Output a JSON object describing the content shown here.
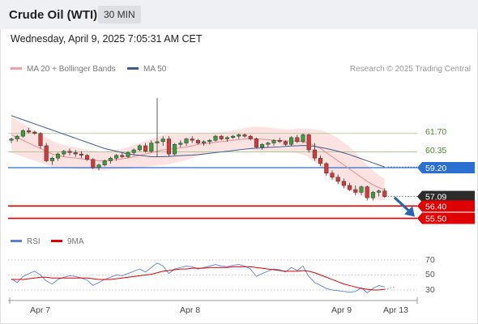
{
  "header": {
    "title": "Crude Oil (WTI)",
    "timeframe": "30 MIN"
  },
  "datetime": "Wednesday, April 9, 2025 7:05:31 AM CET",
  "legend": {
    "ma20": {
      "label": "MA 20 + Bollinger Bands",
      "color": "#f5a0a0"
    },
    "ma50": {
      "label": "MA 50",
      "color": "#3f5b8f"
    }
  },
  "credit": "Research © 2025 Trading Central",
  "rsi_legend": {
    "rsi": {
      "label": "RSI",
      "color": "#5b7fd6"
    },
    "ma9": {
      "label": "9MA",
      "color": "#e00000"
    }
  },
  "price_levels": {
    "r2": {
      "label": "61.70",
      "value": 61.7,
      "color": "#a3c28a"
    },
    "r1": {
      "label": "60.35",
      "value": 60.35,
      "color": "#a3c28a"
    },
    "pivot": {
      "label": "59.20",
      "value": 59.2,
      "color": "#2b6fd1"
    },
    "last": {
      "label": "57.09",
      "value": 57.09,
      "color": "#333333"
    },
    "s1": {
      "label": "56.40",
      "value": 56.4,
      "color": "#e00000"
    },
    "s2": {
      "label": "55.50",
      "value": 55.5,
      "color": "#e00000"
    }
  },
  "rsi_levels": [
    "70",
    "50",
    "30"
  ],
  "x_axis": [
    "Apr 7",
    "Apr 8",
    "Apr 9",
    "Apr 13"
  ],
  "colors": {
    "up": "#3a9d3a",
    "down": "#d23a3a",
    "arrow": "#2b63b0",
    "band": "#fde2e2"
  },
  "chart_data": {
    "type": "candlestick",
    "candles": [
      [
        61.2,
        61.4,
        61.0,
        61.3
      ],
      [
        61.3,
        61.6,
        61.1,
        61.5
      ],
      [
        61.5,
        62.0,
        61.4,
        61.9
      ],
      [
        61.9,
        62.1,
        61.7,
        61.8
      ],
      [
        61.8,
        61.9,
        61.6,
        61.7
      ],
      [
        61.7,
        61.8,
        60.6,
        60.8
      ],
      [
        60.8,
        61.0,
        59.6,
        59.7
      ],
      [
        59.7,
        60.0,
        59.4,
        59.9
      ],
      [
        59.9,
        60.3,
        59.7,
        60.2
      ],
      [
        60.2,
        60.5,
        60.0,
        60.4
      ],
      [
        60.4,
        60.6,
        60.1,
        60.3
      ],
      [
        60.3,
        60.5,
        60.0,
        60.2
      ],
      [
        60.2,
        60.4,
        59.9,
        60.1
      ],
      [
        60.1,
        60.2,
        59.7,
        59.8
      ],
      [
        59.8,
        59.9,
        59.1,
        59.2
      ],
      [
        59.2,
        59.5,
        59.0,
        59.4
      ],
      [
        59.4,
        59.8,
        59.3,
        59.7
      ],
      [
        59.7,
        60.0,
        59.5,
        59.9
      ],
      [
        59.9,
        60.2,
        59.7,
        60.1
      ],
      [
        60.1,
        60.3,
        59.9,
        60.0
      ],
      [
        60.0,
        60.4,
        59.9,
        60.3
      ],
      [
        60.3,
        60.6,
        60.1,
        60.5
      ],
      [
        60.5,
        60.9,
        60.4,
        60.8
      ],
      [
        60.8,
        61.0,
        60.3,
        60.4
      ],
      [
        60.4,
        61.2,
        60.3,
        61.0
      ],
      [
        61.0,
        64.3,
        60.0,
        61.1
      ],
      [
        61.1,
        61.5,
        60.8,
        61.3
      ],
      [
        61.3,
        61.5,
        60.0,
        60.2
      ],
      [
        60.2,
        61.0,
        60.1,
        60.9
      ],
      [
        60.9,
        61.2,
        60.7,
        61.0
      ],
      [
        61.0,
        61.4,
        60.8,
        61.3
      ],
      [
        61.3,
        61.5,
        61.0,
        61.2
      ],
      [
        61.2,
        61.3,
        60.9,
        61.0
      ],
      [
        61.0,
        61.2,
        60.8,
        61.1
      ],
      [
        61.1,
        61.3,
        60.9,
        61.2
      ],
      [
        61.2,
        61.6,
        61.1,
        61.5
      ],
      [
        61.5,
        61.6,
        61.2,
        61.3
      ],
      [
        61.3,
        61.5,
        61.1,
        61.4
      ],
      [
        61.4,
        61.6,
        61.3,
        61.5
      ],
      [
        61.5,
        61.7,
        61.3,
        61.6
      ],
      [
        61.6,
        61.7,
        61.4,
        61.5
      ],
      [
        61.5,
        61.6,
        61.2,
        61.3
      ],
      [
        61.3,
        61.4,
        60.6,
        60.7
      ],
      [
        60.7,
        61.0,
        60.5,
        60.9
      ],
      [
        60.9,
        61.1,
        60.7,
        61.0
      ],
      [
        61.0,
        61.3,
        60.8,
        61.2
      ],
      [
        61.2,
        61.4,
        61.0,
        61.1
      ],
      [
        61.1,
        61.2,
        60.8,
        60.9
      ],
      [
        60.9,
        61.5,
        60.8,
        61.4
      ],
      [
        61.4,
        61.6,
        61.0,
        61.1
      ],
      [
        61.1,
        61.7,
        61.0,
        61.6
      ],
      [
        61.6,
        61.7,
        60.3,
        60.5
      ],
      [
        60.5,
        61.0,
        59.7,
        59.9
      ],
      [
        59.9,
        60.1,
        59.3,
        59.5
      ],
      [
        59.5,
        59.6,
        58.6,
        58.8
      ],
      [
        58.8,
        59.0,
        58.3,
        58.5
      ],
      [
        58.5,
        58.7,
        58.0,
        58.2
      ],
      [
        58.2,
        58.4,
        57.7,
        57.9
      ],
      [
        57.9,
        58.1,
        57.5,
        57.6
      ],
      [
        57.6,
        57.9,
        57.2,
        57.4
      ],
      [
        57.4,
        57.9,
        57.2,
        57.8
      ],
      [
        57.8,
        57.9,
        56.8,
        57.0
      ],
      [
        57.0,
        57.5,
        56.8,
        57.4
      ],
      [
        57.4,
        57.6,
        57.1,
        57.5
      ],
      [
        57.5,
        57.7,
        57.0,
        57.09
      ]
    ],
    "ma20": [
      61.6,
      61.4,
      61.2,
      61.0,
      60.8,
      60.6,
      60.4,
      60.2,
      60.1,
      60.0,
      59.95,
      59.9,
      59.85,
      59.8,
      59.75,
      59.7,
      59.7,
      59.75,
      59.8,
      59.85,
      59.9,
      60.0,
      60.1,
      60.2,
      60.3,
      60.4,
      60.5,
      60.55,
      60.6,
      60.65,
      60.7,
      60.8,
      60.9,
      60.95,
      61.0,
      61.05,
      61.1,
      61.15,
      61.2,
      61.25,
      61.3,
      61.32,
      61.3,
      61.28,
      61.25,
      61.2,
      61.18,
      61.15,
      61.15,
      61.15,
      61.1,
      61.0,
      60.8,
      60.6,
      60.3,
      60.0,
      59.7,
      59.4,
      59.1,
      58.8,
      58.5,
      58.2,
      57.95,
      57.75,
      57.6
    ],
    "bb_width": [
      1.3,
      1.25,
      1.2,
      1.15,
      1.1,
      1.05,
      1.0,
      0.95,
      0.9,
      0.85,
      0.8,
      0.8,
      0.75,
      0.7,
      0.7,
      0.7,
      0.7,
      0.7,
      0.72,
      0.75,
      0.8,
      0.85,
      0.9,
      0.95,
      1.0,
      1.05,
      1.1,
      1.1,
      1.05,
      1.0,
      0.95,
      0.9,
      0.85,
      0.8,
      0.75,
      0.72,
      0.7,
      0.7,
      0.72,
      0.75,
      0.8,
      0.85,
      0.9,
      0.9,
      0.9,
      0.88,
      0.85,
      0.85,
      0.85,
      0.9,
      0.95,
      1.05,
      1.2,
      1.35,
      1.5,
      1.6,
      1.65,
      1.65,
      1.6,
      1.5,
      1.35,
      1.2,
      1.05,
      0.9,
      0.8
    ],
    "ma50": [
      63.0,
      62.85,
      62.7,
      62.55,
      62.4,
      62.25,
      62.1,
      61.95,
      61.8,
      61.65,
      61.5,
      61.35,
      61.2,
      61.05,
      60.9,
      60.75,
      60.6,
      60.5,
      60.4,
      60.3,
      60.2,
      60.15,
      60.1,
      60.05,
      60.0,
      60.0,
      60.0,
      60.02,
      60.05,
      60.08,
      60.1,
      60.12,
      60.15,
      60.2,
      60.25,
      60.3,
      60.35,
      60.4,
      60.45,
      60.5,
      60.55,
      60.6,
      60.62,
      60.65,
      60.68,
      60.7,
      60.72,
      60.75,
      60.78,
      60.8,
      60.82,
      60.8,
      60.75,
      60.68,
      60.6,
      60.5,
      60.4,
      60.28,
      60.15,
      60.0,
      59.85,
      59.7,
      59.55,
      59.4,
      59.25
    ],
    "rsi": [
      45,
      40,
      48,
      52,
      55,
      50,
      42,
      38,
      44,
      47,
      49,
      48,
      46,
      43,
      36,
      40,
      44,
      47,
      50,
      49,
      52,
      55,
      58,
      54,
      60,
      66,
      62,
      52,
      58,
      60,
      62,
      61,
      58,
      60,
      62,
      64,
      62,
      61,
      63,
      64,
      62,
      58,
      48,
      52,
      55,
      58,
      57,
      54,
      60,
      56,
      62,
      48,
      40,
      36,
      32,
      30,
      29,
      28,
      27,
      28,
      33,
      26,
      32,
      36,
      34
    ],
    "rsi_ma": [
      44,
      44,
      44,
      45,
      46,
      47,
      47,
      46,
      46,
      46,
      46,
      46,
      46,
      46,
      45,
      44,
      44,
      44,
      45,
      46,
      47,
      48,
      49,
      50,
      51,
      53,
      55,
      56,
      57,
      58,
      58,
      59,
      59,
      59,
      60,
      60,
      60,
      60,
      61,
      61,
      61,
      61,
      60,
      59,
      58,
      57,
      56,
      55,
      55,
      55,
      56,
      55,
      53,
      50,
      47,
      44,
      41,
      38,
      36,
      34,
      32,
      31,
      30,
      30,
      31
    ],
    "rsi_axis": [
      30,
      50,
      70
    ]
  }
}
